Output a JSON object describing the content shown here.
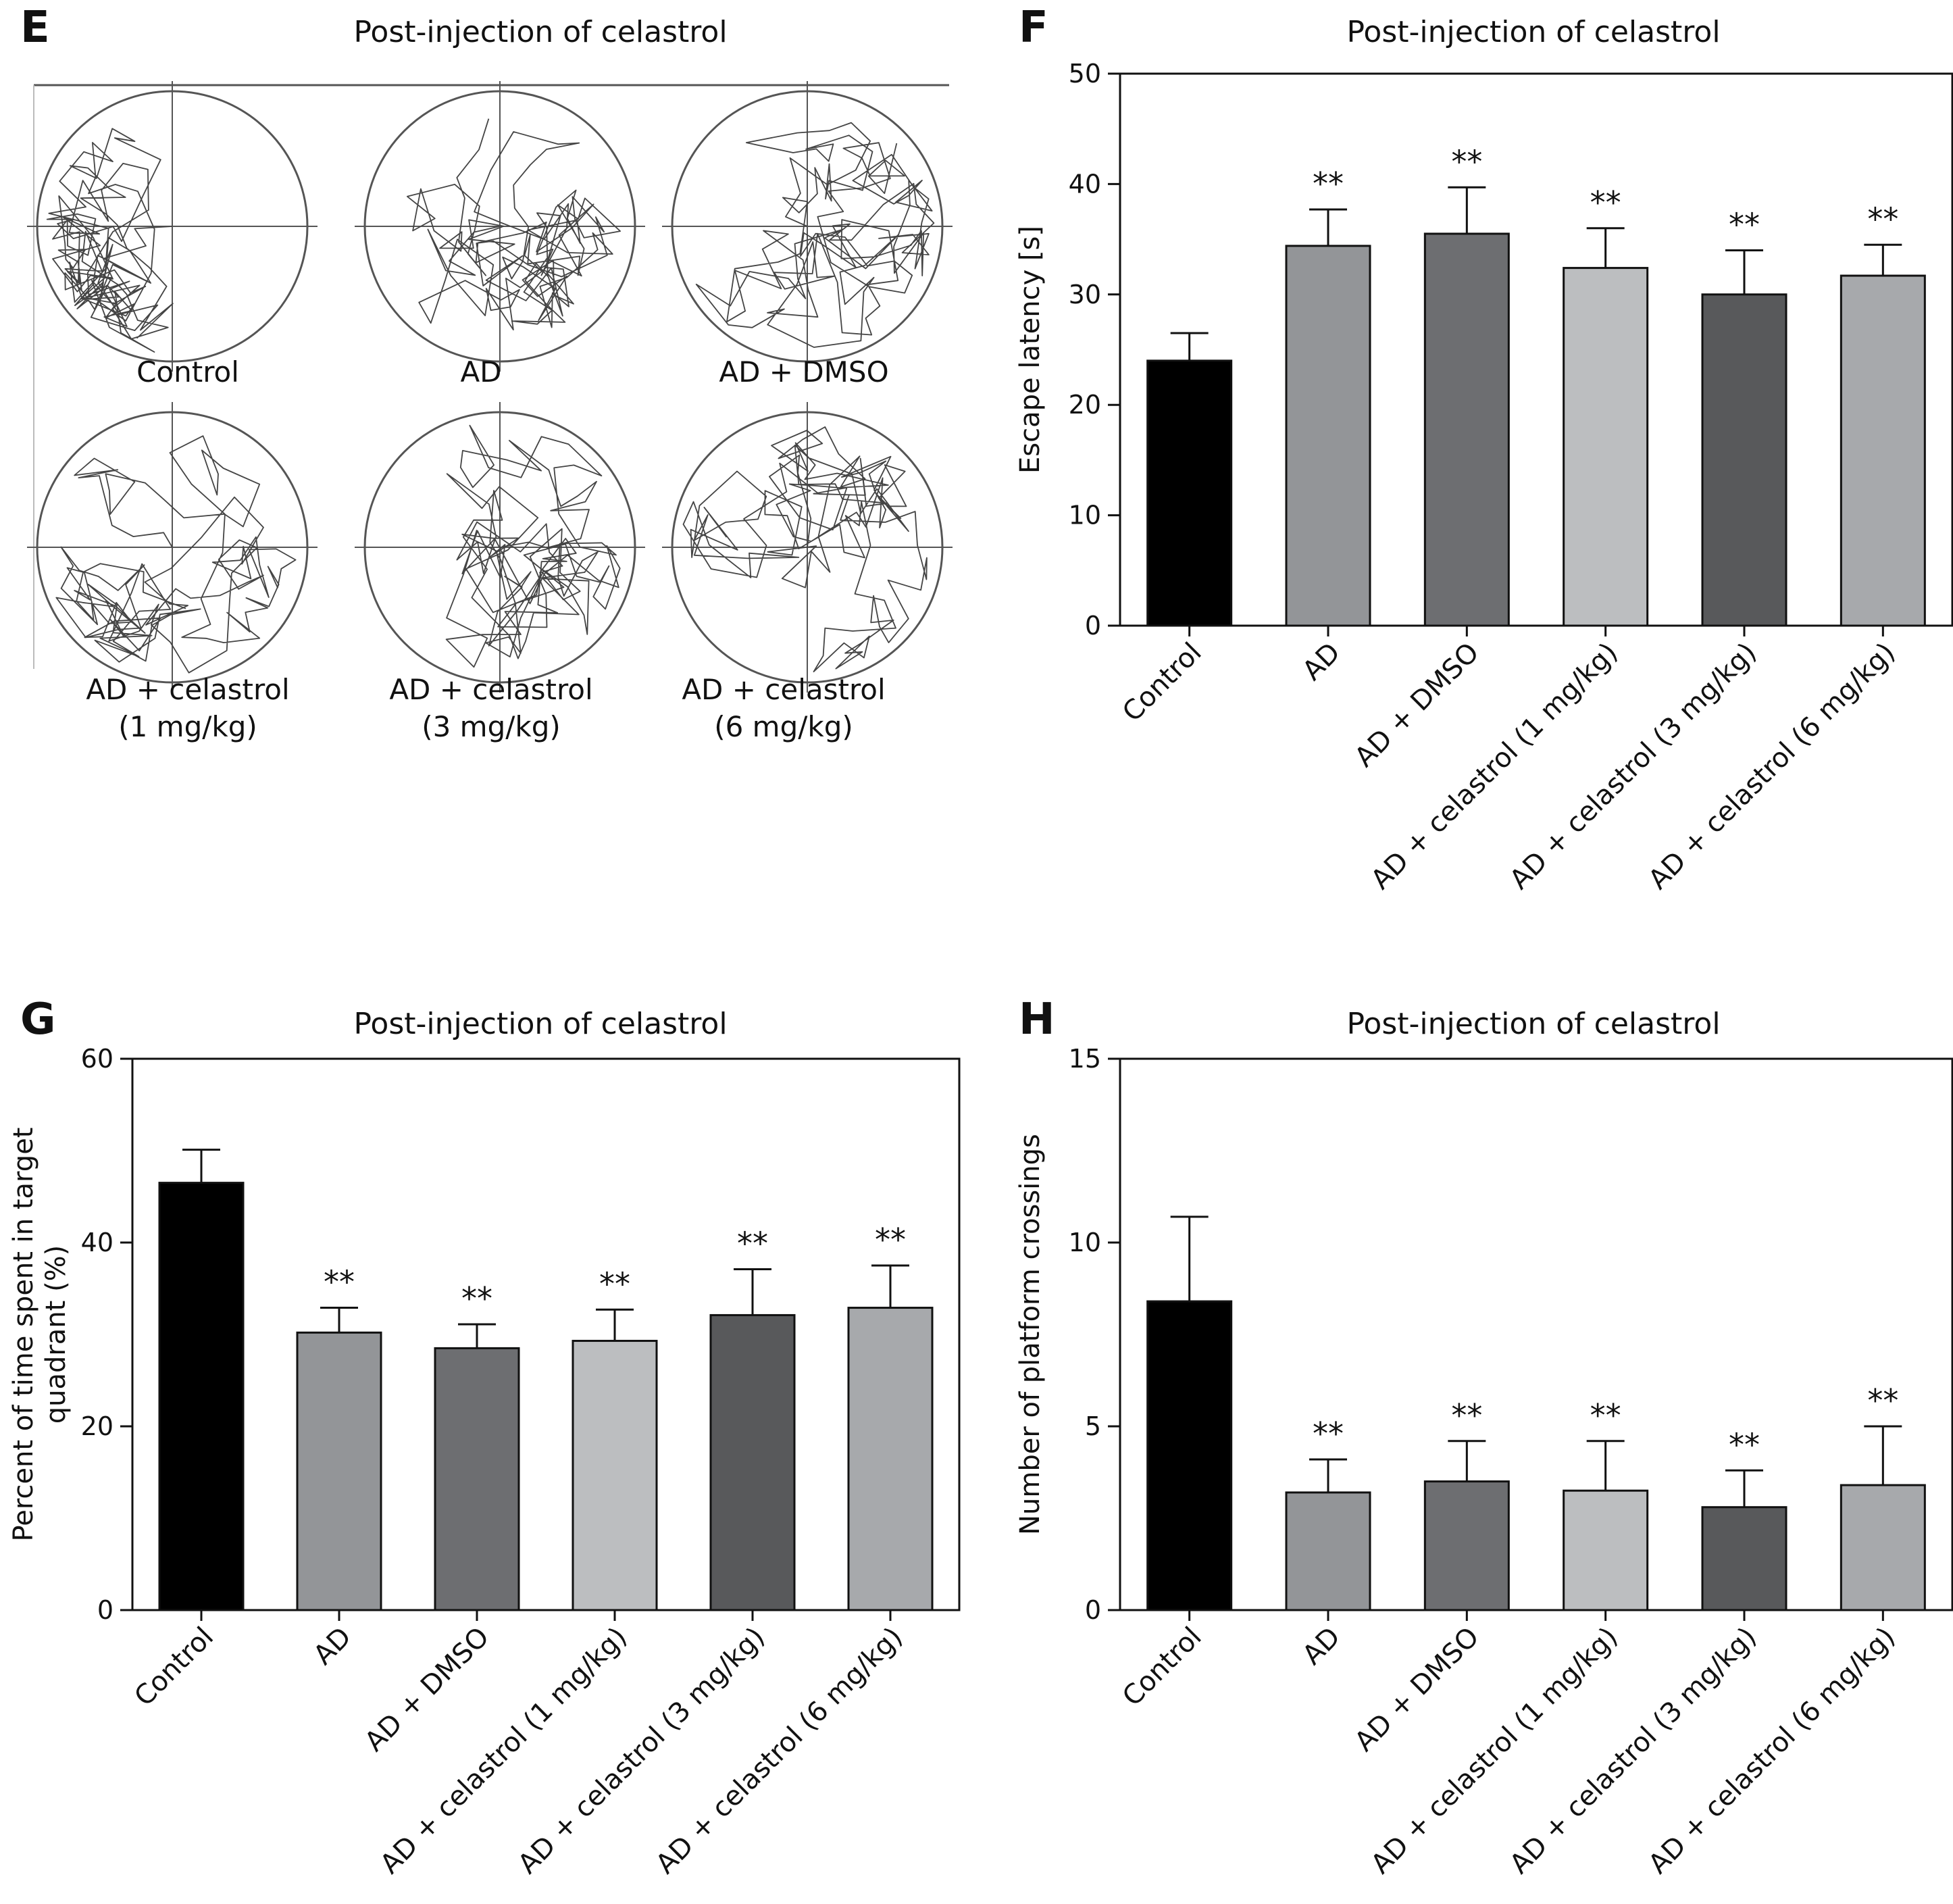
{
  "panels": {
    "E": {
      "letter": "E",
      "title": "Post-injection of celastrol",
      "groups": [
        {
          "label_lines": [
            "Control"
          ],
          "track": "control"
        },
        {
          "label_lines": [
            "AD"
          ],
          "track": "random"
        },
        {
          "label_lines": [
            "AD + DMSO"
          ],
          "track": "random"
        },
        {
          "label_lines": [
            "AD + celastrol",
            "(1 mg/kg)"
          ],
          "track": "random"
        },
        {
          "label_lines": [
            "AD + celastrol",
            "(3 mg/kg)"
          ],
          "track": "random"
        },
        {
          "label_lines": [
            "AD + celastrol",
            "(6 mg/kg)"
          ],
          "track": "random"
        }
      ]
    },
    "F": {
      "letter": "F",
      "title": "Post-injection of celastrol"
    },
    "G": {
      "letter": "G",
      "title": "Post-injection of celastrol"
    },
    "H": {
      "letter": "H",
      "title": "Post-injection of celastrol"
    }
  },
  "colors": {
    "Control": "#000000",
    "AD": "#939598",
    "AD + DMSO": "#6d6e71",
    "AD + celastrol (1 mg/kg)": "#bcbec0",
    "AD + celastrol (3 mg/kg)": "#58595b",
    "AD + celastrol (6 mg/kg)": "#a7a9ac"
  },
  "chart_data": [
    {
      "panel": "F",
      "type": "bar",
      "title": "Post-injection of celastrol",
      "xlabel": "",
      "ylabel": "Escape latency [s]",
      "ylim": [
        0,
        50
      ],
      "yticks": [
        0,
        10,
        20,
        30,
        40,
        50
      ],
      "categories": [
        "Control",
        "AD",
        "AD + DMSO",
        "AD + celastrol (1 mg/kg)",
        "AD + celastrol (3 mg/kg)",
        "AD + celastrol (6 mg/kg)"
      ],
      "values": [
        24.0,
        34.4,
        35.5,
        32.4,
        30.0,
        31.7
      ],
      "errors": [
        2.5,
        3.3,
        4.2,
        3.6,
        4.0,
        2.8
      ],
      "significance": [
        "",
        "**",
        "**",
        "**",
        "**",
        "**"
      ],
      "grid": false
    },
    {
      "panel": "G",
      "type": "bar",
      "title": "Post-injection of celastrol",
      "xlabel": "",
      "ylabel": "Percent of time spent in target quadrant (%)",
      "ylabel_lines": [
        "Percent of time spent in target",
        "quadrant (%)"
      ],
      "ylim": [
        0,
        60
      ],
      "yticks": [
        0,
        20,
        40,
        60
      ],
      "categories": [
        "Control",
        "AD",
        "AD + DMSO",
        "AD + celastrol (1 mg/kg)",
        "AD + celastrol (3 mg/kg)",
        "AD + celastrol (6 mg/kg)"
      ],
      "values": [
        46.5,
        30.2,
        28.5,
        29.3,
        32.1,
        32.9
      ],
      "errors": [
        3.6,
        2.7,
        2.6,
        3.4,
        5.0,
        4.6
      ],
      "significance": [
        "",
        "**",
        "**",
        "**",
        "**",
        "**"
      ],
      "grid": false
    },
    {
      "panel": "H",
      "type": "bar",
      "title": "Post-injection of celastrol",
      "xlabel": "",
      "ylabel": "Number of platform crossings",
      "ylim": [
        0,
        15
      ],
      "yticks": [
        0,
        5,
        10,
        15
      ],
      "categories": [
        "Control",
        "AD",
        "AD + DMSO",
        "AD + celastrol (1 mg/kg)",
        "AD + celastrol (3 mg/kg)",
        "AD + celastrol (6 mg/kg)"
      ],
      "values": [
        8.4,
        3.2,
        3.5,
        3.25,
        2.8,
        3.4
      ],
      "errors": [
        2.3,
        0.9,
        1.1,
        1.35,
        1.0,
        1.6
      ],
      "significance": [
        "",
        "**",
        "**",
        "**",
        "**",
        "**"
      ],
      "grid": false
    }
  ]
}
